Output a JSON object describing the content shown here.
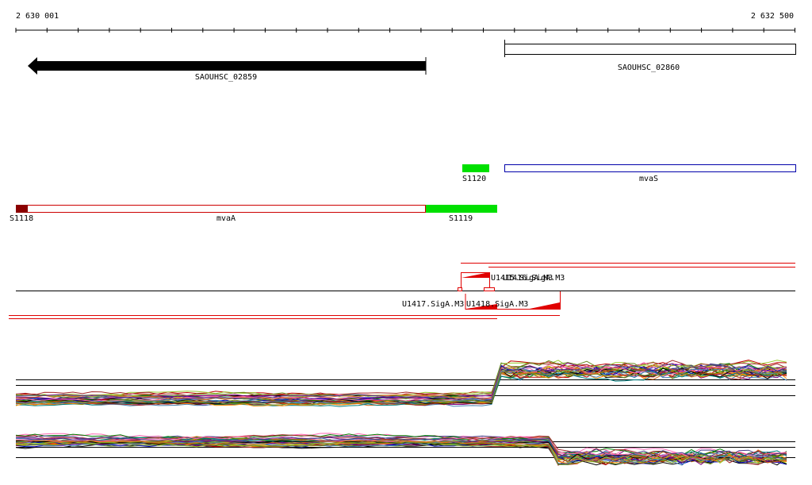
{
  "ruler": {
    "start_label": "2 630 001",
    "end_label": "2 632 500"
  },
  "genes": [
    {
      "label": "SAOUHSC_02859"
    },
    {
      "label": "SAOUHSC_02860"
    }
  ],
  "features": [
    {
      "label": "S1120"
    },
    {
      "label": "mvaS"
    },
    {
      "label": "S1118"
    },
    {
      "label": "mvaA"
    },
    {
      "label": "S1119"
    }
  ],
  "promoters": [
    {
      "label": "U1415.SigA.M3"
    },
    {
      "label": "U1416.SigA.M3"
    },
    {
      "label": "U1417.SigA.M3"
    },
    {
      "label": "U1418.SigA.M3"
    }
  ]
}
